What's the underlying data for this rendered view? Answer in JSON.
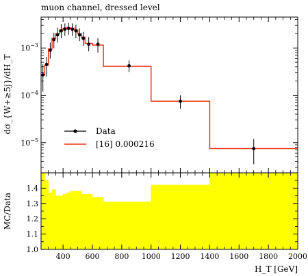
{
  "chart_data": {
    "type": "line",
    "title": "muon channel, dressed level",
    "xlabel": "H_T [GeV]",
    "ylabel": "dσ_{W+≥5j}/dH_T",
    "ratio_ylabel": "MC/Data",
    "x_range": [
      250,
      2000
    ],
    "y_range_log": [
      2.3e-06,
      0.0045
    ],
    "ratio_ylim": [
      1.0,
      1.5
    ],
    "x_ticks": [
      400,
      600,
      800,
      1000,
      1200,
      1400,
      1600,
      1800,
      2000
    ],
    "y_ticks": [
      {
        "value": 0.001,
        "base": "10",
        "exp": "−3"
      },
      {
        "value": 0.0001,
        "base": "10",
        "exp": "−4"
      },
      {
        "value": 1e-05,
        "base": "10",
        "exp": "−5"
      }
    ],
    "ratio_ticks": [
      "1.0",
      "1.1",
      "1.2",
      "1.3",
      "1.4"
    ],
    "legend_position": "bottom-left",
    "series": [
      {
        "name": "Data",
        "style": "points",
        "color": "#000000",
        "points": [
          {
            "x": 262.5,
            "y": 0.00027,
            "lo": 0.00012,
            "hi": 0.00045
          },
          {
            "x": 287.5,
            "y": 0.00045,
            "lo": 0.00025,
            "hi": 0.00065
          },
          {
            "x": 312.5,
            "y": 0.0009,
            "lo": 0.0006,
            "hi": 0.0013
          },
          {
            "x": 337.5,
            "y": 0.0015,
            "lo": 0.001,
            "hi": 0.0021
          },
          {
            "x": 362.5,
            "y": 0.0019,
            "lo": 0.0013,
            "hi": 0.0027
          },
          {
            "x": 387.5,
            "y": 0.0023,
            "lo": 0.0016,
            "hi": 0.0032
          },
          {
            "x": 412.5,
            "y": 0.0025,
            "lo": 0.0018,
            "hi": 0.0033
          },
          {
            "x": 437.5,
            "y": 0.0026,
            "lo": 0.0019,
            "hi": 0.0034
          },
          {
            "x": 462.5,
            "y": 0.0025,
            "lo": 0.0018,
            "hi": 0.0033
          },
          {
            "x": 487.5,
            "y": 0.0023,
            "lo": 0.0016,
            "hi": 0.0031
          },
          {
            "x": 512.5,
            "y": 0.0019,
            "lo": 0.0014,
            "hi": 0.0026
          },
          {
            "x": 537.5,
            "y": 0.0016,
            "lo": 0.0011,
            "hi": 0.0022
          },
          {
            "x": 575,
            "y": 0.0012,
            "lo": 0.00085,
            "hi": 0.0017
          },
          {
            "x": 637.5,
            "y": 0.0012,
            "lo": 0.0008,
            "hi": 0.0016
          },
          {
            "x": 850,
            "y": 0.00042,
            "lo": 0.00031,
            "hi": 0.00055
          },
          {
            "x": 1200,
            "y": 7.5e-05,
            "lo": 5.2e-05,
            "hi": 0.0001
          },
          {
            "x": 1700,
            "y": 7.5e-06,
            "lo": 3.5e-06,
            "hi": 1.2e-05
          }
        ]
      },
      {
        "name": "[16] 0.000216",
        "style": "histogram",
        "color": "#ee3311",
        "bins": [
          {
            "lo": 250,
            "hi": 275,
            "y": 0.00027
          },
          {
            "lo": 275,
            "hi": 300,
            "y": 0.00043
          },
          {
            "lo": 300,
            "hi": 325,
            "y": 0.00095
          },
          {
            "lo": 325,
            "hi": 350,
            "y": 0.0016
          },
          {
            "lo": 350,
            "hi": 375,
            "y": 0.002
          },
          {
            "lo": 375,
            "hi": 400,
            "y": 0.0024
          },
          {
            "lo": 400,
            "hi": 425,
            "y": 0.0026
          },
          {
            "lo": 425,
            "hi": 450,
            "y": 0.0027
          },
          {
            "lo": 450,
            "hi": 475,
            "y": 0.0026
          },
          {
            "lo": 475,
            "hi": 500,
            "y": 0.0024
          },
          {
            "lo": 500,
            "hi": 525,
            "y": 0.002
          },
          {
            "lo": 525,
            "hi": 550,
            "y": 0.0017
          },
          {
            "lo": 550,
            "hi": 600,
            "y": 0.00125
          },
          {
            "lo": 600,
            "hi": 675,
            "y": 0.00115
          },
          {
            "lo": 675,
            "hi": 1000,
            "y": 0.00041
          },
          {
            "lo": 1000,
            "hi": 1400,
            "y": 7.5e-05
          },
          {
            "lo": 1400,
            "hi": 2000,
            "y": 7.5e-06
          }
        ]
      }
    ],
    "ratio": {
      "color": "#ffff00",
      "bins": [
        {
          "lo": 250,
          "hi": 275,
          "y": 1.5
        },
        {
          "lo": 275,
          "hi": 300,
          "y": 1.45
        },
        {
          "lo": 300,
          "hi": 325,
          "y": 1.37
        },
        {
          "lo": 325,
          "hi": 350,
          "y": 1.39
        },
        {
          "lo": 350,
          "hi": 375,
          "y": 1.35
        },
        {
          "lo": 375,
          "hi": 400,
          "y": 1.35
        },
        {
          "lo": 400,
          "hi": 425,
          "y": 1.36
        },
        {
          "lo": 425,
          "hi": 450,
          "y": 1.37
        },
        {
          "lo": 450,
          "hi": 475,
          "y": 1.38
        },
        {
          "lo": 475,
          "hi": 500,
          "y": 1.38
        },
        {
          "lo": 500,
          "hi": 525,
          "y": 1.38
        },
        {
          "lo": 525,
          "hi": 550,
          "y": 1.36
        },
        {
          "lo": 550,
          "hi": 600,
          "y": 1.36
        },
        {
          "lo": 600,
          "hi": 675,
          "y": 1.34
        },
        {
          "lo": 675,
          "hi": 1000,
          "y": 1.31
        },
        {
          "lo": 1000,
          "hi": 1400,
          "y": 1.42
        },
        {
          "lo": 1400,
          "hi": 2000,
          "y": 1.5
        }
      ]
    }
  }
}
